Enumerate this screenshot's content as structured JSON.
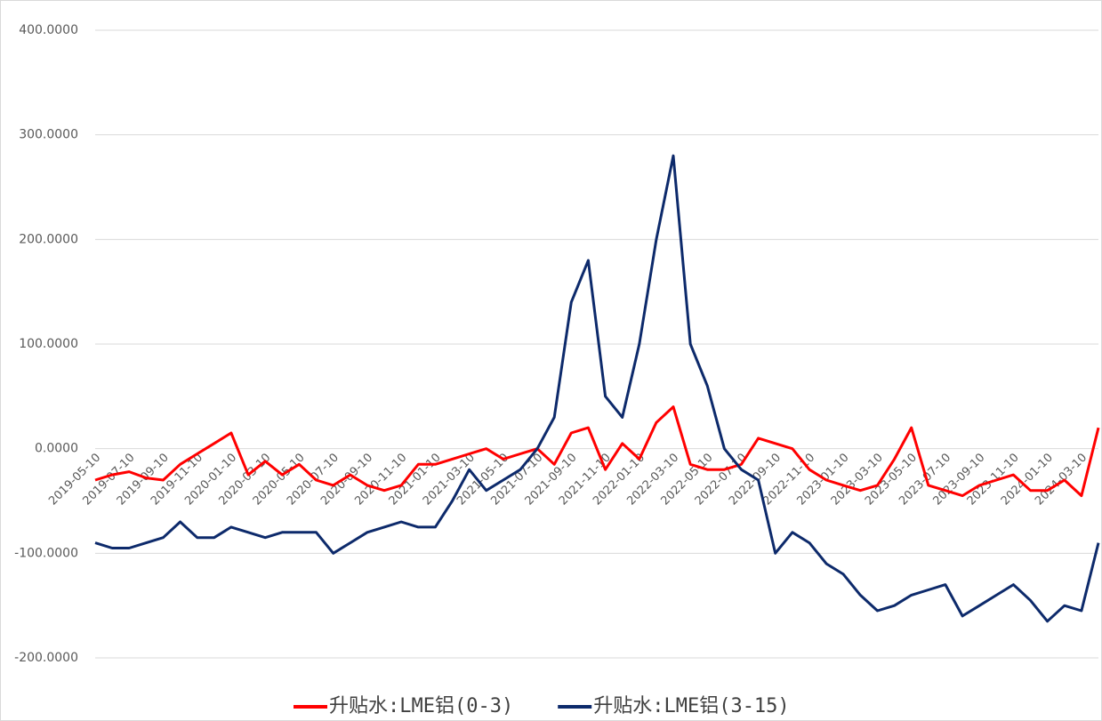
{
  "chart_data": {
    "type": "line",
    "categories": [
      "2019-05-10",
      null,
      "2019-07-10",
      null,
      "2019-09-10",
      null,
      "2019-11-10",
      null,
      "2020-01-10",
      null,
      "2020-03-10",
      null,
      "2020-05-10",
      null,
      "2020-07-10",
      null,
      "2020-09-10",
      null,
      "2020-11-10",
      null,
      "2021-01-10",
      null,
      "2021-03-10",
      null,
      "2021-05-10",
      null,
      "2021-07-10",
      null,
      "2021-09-10",
      null,
      "2021-11-10",
      null,
      "2022-01-10",
      null,
      "2022-03-10",
      null,
      "2022-05-10",
      null,
      "2022-07-10",
      null,
      "2022-09-10",
      null,
      "2022-11-10",
      null,
      "2023-01-10",
      null,
      "2023-03-10",
      null,
      "2023-05-10",
      null,
      "2023-07-10",
      null,
      "2023-09-10",
      null,
      "2023-11-10",
      null,
      "2024-01-10",
      null,
      "2024-03-10",
      null
    ],
    "series": [
      {
        "name": "升贴水:LME铝(0-3)",
        "color": "#ff0000",
        "values": [
          -30,
          -25,
          -22,
          -28,
          -30,
          -15,
          -5,
          5,
          15,
          -25,
          -12,
          -25,
          -15,
          -30,
          -35,
          -25,
          -35,
          -40,
          -35,
          -15,
          -15,
          -10,
          -5,
          0,
          -10,
          -5,
          0,
          -15,
          15,
          20,
          -20,
          5,
          -10,
          25,
          40,
          -15,
          -20,
          -20,
          -15,
          10,
          5,
          0,
          -20,
          -30,
          -35,
          -40,
          -35,
          -10,
          20,
          -35,
          -40,
          -45,
          -35,
          -30,
          -25,
          -40,
          -40,
          -30,
          -45,
          20
        ]
      },
      {
        "name": "升贴水:LME铝(3-15)",
        "color": "#0d2a6b",
        "values": [
          -90,
          -95,
          -95,
          -90,
          -85,
          -70,
          -85,
          -85,
          -75,
          -80,
          -85,
          -80,
          -80,
          -80,
          -100,
          -90,
          -80,
          -75,
          -70,
          -75,
          -75,
          -50,
          -20,
          -40,
          -30,
          -20,
          0,
          30,
          140,
          180,
          50,
          30,
          100,
          200,
          280,
          100,
          60,
          0,
          -20,
          -30,
          -100,
          -80,
          -90,
          -110,
          -120,
          -140,
          -155,
          -150,
          -140,
          -135,
          -130,
          -160,
          -150,
          -140,
          -130,
          -145,
          -165,
          -150,
          -155,
          -90
        ]
      }
    ],
    "ylim": [
      -200,
      400
    ],
    "yticks": [
      {
        "value": -200,
        "label": "-200.0000"
      },
      {
        "value": -100,
        "label": "-100.0000"
      },
      {
        "value": 0,
        "label": "0.0000"
      },
      {
        "value": 100,
        "label": "100.0000"
      },
      {
        "value": 200,
        "label": "200.0000"
      },
      {
        "value": 300,
        "label": "300.0000"
      },
      {
        "value": 400,
        "label": "400.0000"
      }
    ],
    "grid": true
  }
}
